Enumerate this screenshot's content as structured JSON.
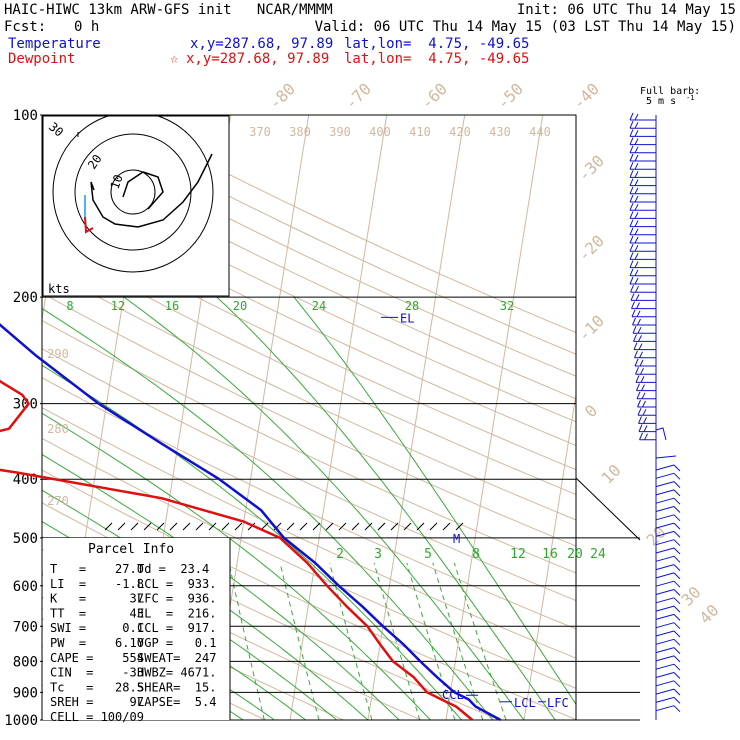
{
  "header": {
    "model_line": "HAIC-HIWC 13km ARW-GFS init   NCAR/MMMM",
    "fcst_label": "Fcst:",
    "fcst_value": "0 h",
    "init_line": "Init: 06 UTC Thu 14 May 15",
    "valid_line": "Valid: 06 UTC Thu 14 May 15 (03 LST Thu 14 May 15)",
    "temp_label": "Temperature",
    "temp_loc": "x,y=287.68, 97.89",
    "temp_latlon": "lat,lon=  4.75, -49.65",
    "dew_label": "Dewpoint",
    "dew_loc": "x,y=287.68, 97.89",
    "dew_latlon": "lat,lon=  4.75, -49.65",
    "barb_key_1": "Full barb:",
    "barb_key_2": "5 m s",
    "colors": {
      "temperature": "#1010d0",
      "dewpoint": "#e01010",
      "title": "#000000"
    }
  },
  "chart_data": {
    "type": "line",
    "chart_kind": "skew-T log-P sounding",
    "pressure_ticks": [
      100,
      200,
      300,
      400,
      500,
      600,
      700,
      800,
      900,
      1000
    ],
    "temperature_ticks": [
      -80,
      -70,
      -60,
      -50,
      -40,
      -30,
      -20,
      -10,
      0,
      10,
      20,
      30,
      40
    ],
    "theta_labels": [
      370,
      380,
      390,
      400,
      410,
      420,
      430,
      440
    ],
    "theta_left_labels": [
      290,
      280,
      270
    ],
    "theta_e_labels": [
      8,
      12,
      16,
      20,
      24,
      28,
      32
    ],
    "mixing_ratio_labels": [
      2,
      3,
      5,
      8,
      12,
      16,
      20,
      24
    ],
    "series": [
      {
        "name": "Temperature",
        "color": "#1010d0",
        "points": [
          [
            100,
            -72
          ],
          [
            125,
            -66
          ],
          [
            150,
            -59
          ],
          [
            200,
            -50
          ],
          [
            250,
            -40
          ],
          [
            300,
            -31
          ],
          [
            350,
            -22
          ],
          [
            400,
            -14
          ],
          [
            450,
            -8
          ],
          [
            500,
            -4.5
          ],
          [
            550,
            0
          ],
          [
            600,
            3.5
          ],
          [
            650,
            7
          ],
          [
            700,
            10
          ],
          [
            750,
            13
          ],
          [
            800,
            15.5
          ],
          [
            850,
            18
          ],
          [
            900,
            20.5
          ],
          [
            925,
            22.5
          ],
          [
            950,
            23.5
          ],
          [
            1000,
            27
          ]
        ]
      },
      {
        "name": "Dewpoint",
        "color": "#e01010",
        "points": [
          [
            100,
            -79
          ],
          [
            125,
            -77
          ],
          [
            150,
            -72
          ],
          [
            200,
            -62
          ],
          [
            250,
            -50
          ],
          [
            290,
            -41
          ],
          [
            300,
            -40
          ],
          [
            330,
            -42
          ],
          [
            365,
            -55
          ],
          [
            390,
            -40
          ],
          [
            430,
            -21
          ],
          [
            470,
            -10
          ],
          [
            500,
            -5
          ],
          [
            550,
            -1
          ],
          [
            600,
            2
          ],
          [
            650,
            5
          ],
          [
            700,
            8
          ],
          [
            750,
            10
          ],
          [
            800,
            12
          ],
          [
            850,
            15
          ],
          [
            900,
            17
          ],
          [
            925,
            19
          ],
          [
            950,
            21
          ],
          [
            1000,
            23.4
          ]
        ]
      }
    ],
    "levels": [
      {
        "name": "EL",
        "p": 216
      },
      {
        "name": "M",
        "p": 500
      },
      {
        "name": "CCL",
        "p": 917
      },
      {
        "name": "LCL",
        "p": 933
      },
      {
        "name": "LFC",
        "p": 936
      }
    ],
    "hodograph": {
      "ring_labels": [
        "30",
        "20",
        "10"
      ],
      "unit": "kts",
      "points": [
        [
          -50,
          -43
        ],
        [
          -45,
          -47
        ],
        [
          -38,
          -55
        ],
        [
          -30,
          -60
        ],
        [
          -20,
          -64
        ],
        [
          -10,
          -65
        ],
        [
          0,
          -65
        ],
        [
          12,
          -60
        ],
        [
          25,
          -55
        ],
        [
          38,
          -47
        ],
        [
          52,
          -38
        ],
        [
          62,
          -28
        ],
        [
          70,
          -15
        ],
        [
          75,
          0
        ],
        [
          79,
          15
        ]
      ],
      "tail_points": [
        [
          -52,
          -43
        ],
        [
          -55,
          -30
        ],
        [
          -54,
          -25
        ],
        [
          -52,
          -28
        ],
        [
          -48,
          -23
        ]
      ]
    },
    "parcel_info": {
      "title": "Parcel Info",
      "rows": [
        [
          "T   =    27.0",
          "Td =  23.4"
        ],
        [
          "LI  =    -1.8",
          "LCL =  933."
        ],
        [
          "K   =      37",
          "LFC =  936."
        ],
        [
          "TT  =      43",
          "EL  =  216."
        ],
        [
          "SWI =     0.1",
          "CCL =  917."
        ],
        [
          "PW  =    6.10",
          "YGP =   0.1"
        ],
        [
          "CAPE =    554",
          "SWEAT=  247"
        ],
        [
          "CIN  =    -33",
          "HWBZ= 4671."
        ],
        [
          "Tc   =   28.5",
          "SHEAR=  15."
        ],
        [
          "SREH =     97",
          "LAPSE=  5.4"
        ],
        [
          "CELL = 100/09",
          ""
        ]
      ]
    },
    "wind_barb_key_label": "Full barb: 5 m s-1"
  }
}
